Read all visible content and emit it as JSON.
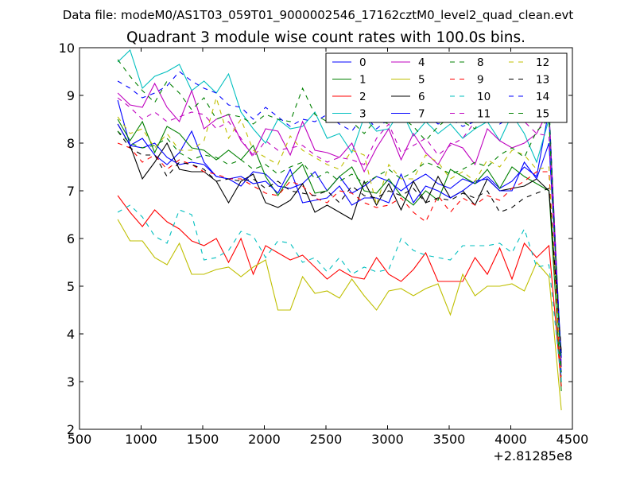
{
  "suptitle": "Data file: modeM0/AS1T03_059T01_9000002546_17162cztM0_level2_quad_clean.evt",
  "chart_data": {
    "type": "line",
    "title": "Quadrant 3 module wise count rates with 100.0s bins.",
    "xlabel": "",
    "ylabel": "",
    "x_offset_label": "+2.81285e8",
    "xlim": [
      500,
      4500
    ],
    "ylim": [
      2,
      10
    ],
    "xticks": [
      500,
      1000,
      1500,
      2000,
      2500,
      3000,
      3500,
      4000,
      4500
    ],
    "xtick_labels": [
      "500",
      "1000",
      "1500",
      "2000",
      "2500",
      "3000",
      "3500",
      "4000",
      "4500"
    ],
    "yticks": [
      2,
      3,
      4,
      5,
      6,
      7,
      8,
      9,
      10
    ],
    "ytick_labels": [
      "2",
      "3",
      "4",
      "5",
      "6",
      "7",
      "8",
      "9",
      "10"
    ],
    "legend_position": "top-right",
    "x": [
      810,
      910,
      1010,
      1110,
      1210,
      1310,
      1410,
      1510,
      1610,
      1710,
      1810,
      1910,
      2010,
      2110,
      2210,
      2310,
      2410,
      2510,
      2610,
      2710,
      2810,
      2910,
      3010,
      3110,
      3210,
      3310,
      3410,
      3510,
      3610,
      3710,
      3810,
      3910,
      4010,
      4110,
      4210,
      4310,
      4410
    ],
    "series": [
      {
        "name": "0",
        "color": "#0000ff",
        "dash": "solid",
        "values": [
          8.9,
          7.95,
          8.1,
          7.75,
          7.55,
          7.8,
          8.25,
          7.6,
          7.3,
          7.25,
          7.1,
          7.4,
          7.35,
          7.1,
          7.05,
          7.15,
          7.4,
          7.0,
          7.3,
          6.95,
          7.1,
          7.3,
          7.2,
          7.0,
          7.2,
          7.35,
          7.15,
          7.05,
          7.25,
          7.15,
          7.3,
          7.05,
          7.2,
          7.5,
          7.3,
          8.7,
          3.3
        ]
      },
      {
        "name": "1",
        "color": "#008000",
        "dash": "solid",
        "values": [
          8.5,
          8.05,
          8.45,
          7.8,
          8.35,
          8.2,
          7.9,
          7.85,
          7.65,
          7.85,
          7.65,
          7.95,
          7.3,
          6.9,
          7.3,
          7.55,
          6.95,
          7.0,
          7.3,
          7.5,
          7.0,
          6.95,
          7.25,
          6.9,
          6.7,
          7.0,
          6.8,
          7.45,
          7.3,
          7.15,
          7.45,
          7.05,
          7.5,
          7.3,
          7.15,
          7.0,
          2.8
        ]
      },
      {
        "name": "2",
        "color": "#ff0000",
        "dash": "solid",
        "values": [
          6.9,
          6.55,
          6.25,
          6.6,
          6.35,
          6.2,
          5.95,
          5.85,
          6.0,
          5.5,
          6.0,
          5.25,
          5.85,
          5.7,
          5.55,
          5.65,
          5.4,
          5.15,
          5.35,
          5.2,
          5.15,
          5.6,
          5.25,
          5.1,
          5.35,
          5.7,
          5.1,
          5.1,
          5.1,
          5.6,
          5.25,
          5.8,
          5.15,
          5.9,
          5.6,
          5.85,
          2.9
        ]
      },
      {
        "name": "3",
        "color": "#00bfbf",
        "dash": "solid",
        "values": [
          9.7,
          9.95,
          9.15,
          9.4,
          9.5,
          9.65,
          9.1,
          9.3,
          9.05,
          9.45,
          8.65,
          8.3,
          8.0,
          8.5,
          8.3,
          8.35,
          8.65,
          8.1,
          8.2,
          7.8,
          8.55,
          8.25,
          8.3,
          8.7,
          8.15,
          8.45,
          8.2,
          8.4,
          8.1,
          8.3,
          8.45,
          8.05,
          8.6,
          8.2,
          7.6,
          8.5,
          3.0
        ]
      },
      {
        "name": "4",
        "color": "#bf00bf",
        "dash": "solid",
        "values": [
          9.05,
          8.8,
          8.75,
          9.25,
          8.75,
          8.45,
          9.1,
          8.3,
          8.5,
          8.6,
          8.05,
          7.75,
          8.3,
          8.25,
          7.75,
          8.45,
          7.85,
          7.8,
          7.7,
          8.0,
          7.4,
          7.9,
          8.3,
          7.65,
          8.2,
          7.8,
          7.55,
          8.0,
          7.9,
          7.55,
          8.3,
          8.05,
          7.9,
          8.0,
          8.2,
          8.7,
          3.3
        ]
      },
      {
        "name": "5",
        "color": "#bfbf00",
        "dash": "solid",
        "values": [
          6.4,
          5.95,
          5.95,
          5.6,
          5.45,
          5.9,
          5.25,
          5.25,
          5.35,
          5.4,
          5.2,
          5.4,
          5.55,
          4.5,
          4.5,
          5.2,
          4.85,
          4.9,
          4.75,
          5.15,
          4.8,
          4.5,
          4.9,
          4.95,
          4.8,
          4.95,
          5.05,
          4.4,
          5.25,
          4.8,
          5.0,
          5.0,
          5.05,
          4.9,
          5.5,
          5.2,
          2.4
        ]
      },
      {
        "name": "6",
        "color": "#000000",
        "dash": "solid",
        "values": [
          8.4,
          7.95,
          7.25,
          7.6,
          8.0,
          7.45,
          7.4,
          7.4,
          7.2,
          6.75,
          7.2,
          7.35,
          6.75,
          6.65,
          6.8,
          7.15,
          6.55,
          6.7,
          6.55,
          6.4,
          7.2,
          6.7,
          7.15,
          6.6,
          7.2,
          6.75,
          7.3,
          6.85,
          7.0,
          6.7,
          7.25,
          7.0,
          7.05,
          7.1,
          7.25,
          7.0,
          3.6
        ]
      },
      {
        "name": "7",
        "color": "#0000ff",
        "dash": "solid",
        "values": [
          8.4,
          7.95,
          7.9,
          8.0,
          7.7,
          7.55,
          7.6,
          7.55,
          7.3,
          7.25,
          7.3,
          7.15,
          7.2,
          6.95,
          7.45,
          6.75,
          6.8,
          6.85,
          7.1,
          6.7,
          6.85,
          6.85,
          6.75,
          7.35,
          6.75,
          7.1,
          7.0,
          6.85,
          7.0,
          7.2,
          7.25,
          7.0,
          7.0,
          7.6,
          7.25,
          8.0,
          3.5
        ]
      },
      {
        "name": "8",
        "color": "#008000",
        "dash": "dashed",
        "values": [
          9.75,
          9.4,
          9.1,
          8.85,
          9.3,
          9.05,
          8.7,
          8.95,
          8.5,
          8.6,
          8.55,
          8.4,
          8.6,
          8.5,
          8.45,
          9.15,
          8.6,
          8.45,
          8.55,
          8.45,
          8.2,
          8.5,
          8.4,
          8.55,
          8.35,
          8.05,
          8.35,
          8.55,
          8.45,
          8.3,
          8.75,
          8.6,
          8.65,
          8.7,
          8.6,
          8.85,
          2.9
        ]
      },
      {
        "name": "9",
        "color": "#ff0000",
        "dash": "dashed",
        "values": [
          8.0,
          7.9,
          7.6,
          7.75,
          7.45,
          7.65,
          7.55,
          7.4,
          7.35,
          7.25,
          7.25,
          7.1,
          6.95,
          6.9,
          7.2,
          7.1,
          6.85,
          6.75,
          7.0,
          6.95,
          6.75,
          6.65,
          6.7,
          6.85,
          6.55,
          6.35,
          6.9,
          6.55,
          6.85,
          6.7,
          6.9,
          6.8,
          7.05,
          7.2,
          7.4,
          7.4,
          2.9
        ]
      },
      {
        "name": "10",
        "color": "#00bfbf",
        "dash": "dashed",
        "values": [
          6.55,
          6.7,
          6.45,
          6.05,
          5.9,
          6.6,
          6.5,
          5.55,
          5.6,
          5.75,
          6.15,
          6.05,
          5.6,
          5.95,
          5.9,
          5.5,
          5.6,
          5.3,
          5.6,
          5.25,
          5.4,
          5.3,
          5.35,
          6.0,
          5.75,
          5.65,
          5.6,
          5.55,
          5.85,
          5.85,
          5.85,
          5.9,
          5.7,
          6.2,
          5.4,
          5.45,
          3.0
        ]
      },
      {
        "name": "11",
        "color": "#bf00bf",
        "dash": "dashed",
        "values": [
          8.95,
          8.75,
          8.5,
          8.65,
          8.45,
          8.55,
          8.65,
          8.6,
          8.3,
          8.45,
          8.1,
          7.7,
          8.05,
          7.85,
          7.9,
          7.95,
          7.75,
          7.6,
          7.7,
          7.65,
          7.55,
          8.1,
          8.4,
          7.8,
          7.95,
          8.1,
          7.75,
          7.95,
          8.1,
          8.45,
          8.85,
          9.25,
          9.1,
          8.45,
          8.2,
          8.15,
          3.1
        ]
      },
      {
        "name": "12",
        "color": "#bfbf00",
        "dash": "dashed",
        "values": [
          8.55,
          8.2,
          8.3,
          7.9,
          8.2,
          7.85,
          7.85,
          8.05,
          8.95,
          8.1,
          8.5,
          7.85,
          7.7,
          7.55,
          8.15,
          7.85,
          7.7,
          7.55,
          7.45,
          7.85,
          7.75,
          6.7,
          7.55,
          7.25,
          7.25,
          7.75,
          7.6,
          7.25,
          7.4,
          7.2,
          7.65,
          7.5,
          7.85,
          7.75,
          7.45,
          7.5,
          3.1
        ]
      },
      {
        "name": "13",
        "color": "#000000",
        "dash": "dashed",
        "values": [
          8.25,
          7.9,
          7.75,
          7.75,
          7.3,
          7.6,
          7.55,
          7.45,
          7.2,
          7.25,
          7.2,
          7.25,
          7.05,
          7.2,
          7.0,
          6.95,
          6.9,
          7.0,
          6.75,
          7.1,
          6.9,
          6.85,
          7.0,
          6.9,
          7.05,
          6.75,
          6.85,
          6.8,
          6.95,
          6.85,
          7.0,
          6.55,
          6.65,
          6.85,
          6.95,
          7.05,
          3.6
        ]
      },
      {
        "name": "14",
        "color": "#0000ff",
        "dash": "dashed",
        "values": [
          9.3,
          9.15,
          8.95,
          9.05,
          9.2,
          9.5,
          9.3,
          9.15,
          9.05,
          8.8,
          8.75,
          8.5,
          8.75,
          8.55,
          8.35,
          8.5,
          8.45,
          8.6,
          8.4,
          8.25,
          8.6,
          8.3,
          8.5,
          8.45,
          8.55,
          8.6,
          8.4,
          8.5,
          8.35,
          8.45,
          8.65,
          8.4,
          8.55,
          8.7,
          8.5,
          8.65,
          3.1
        ]
      },
      {
        "name": "15",
        "color": "#008000",
        "dash": "dashed",
        "values": [
          8.25,
          8.0,
          7.9,
          7.95,
          8.1,
          7.8,
          7.65,
          7.75,
          7.7,
          7.55,
          7.65,
          7.45,
          7.55,
          7.35,
          7.5,
          7.6,
          7.25,
          7.4,
          7.2,
          7.35,
          7.15,
          7.3,
          7.45,
          7.25,
          7.4,
          7.6,
          7.5,
          7.35,
          7.45,
          7.6,
          7.5,
          7.75,
          7.9,
          7.7,
          8.25,
          8.5,
          3.2
        ]
      }
    ]
  }
}
